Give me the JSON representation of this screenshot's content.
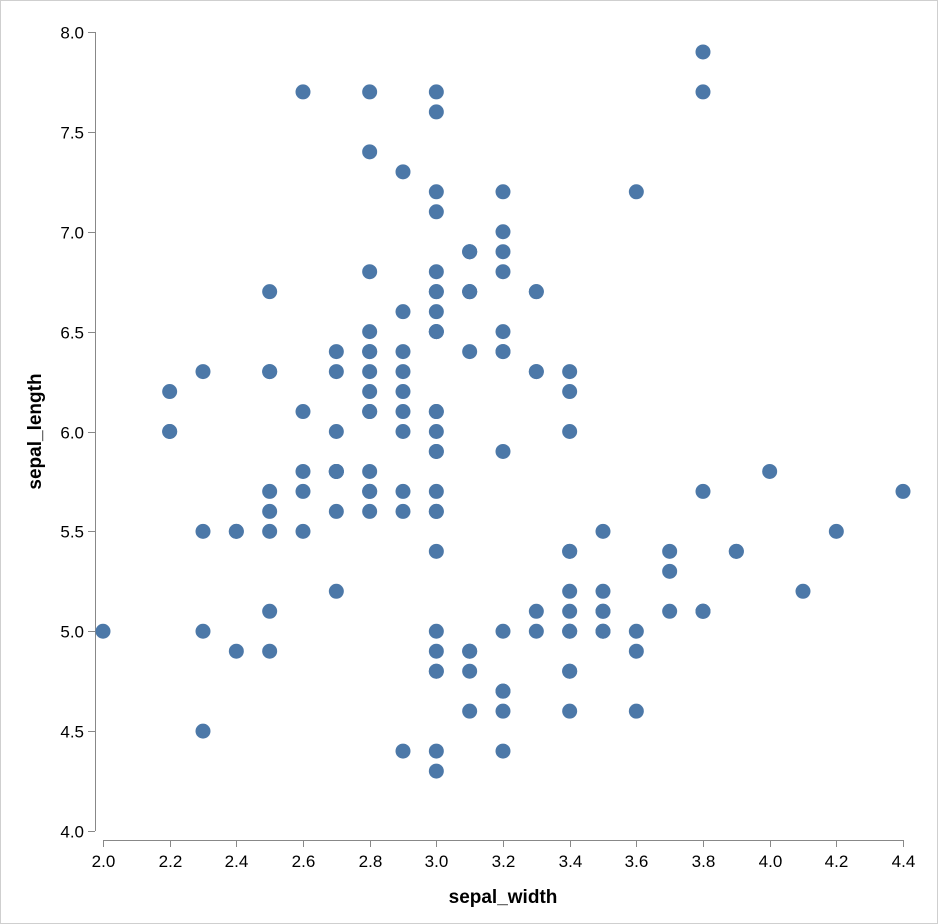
{
  "chart_data": {
    "type": "scatter",
    "xlabel": "sepal_width",
    "ylabel": "sepal_length",
    "xlim": [
      2.0,
      4.4
    ],
    "ylim": [
      4.0,
      8.0
    ],
    "x_ticks": [
      "2.0",
      "2.2",
      "2.4",
      "2.6",
      "2.8",
      "3.0",
      "3.2",
      "3.4",
      "3.6",
      "3.8",
      "4.0",
      "4.2",
      "4.4"
    ],
    "y_ticks": [
      "4.0",
      "4.5",
      "5.0",
      "5.5",
      "6.0",
      "6.5",
      "7.0",
      "7.5",
      "8.0"
    ],
    "grid": false,
    "legend": "none",
    "point_color": "#4c78a8",
    "points": [
      {
        "x": 3.5,
        "y": 5.1
      },
      {
        "x": 3.0,
        "y": 4.9
      },
      {
        "x": 3.2,
        "y": 4.7
      },
      {
        "x": 3.1,
        "y": 4.6
      },
      {
        "x": 3.6,
        "y": 5.0
      },
      {
        "x": 3.9,
        "y": 5.4
      },
      {
        "x": 3.4,
        "y": 4.6
      },
      {
        "x": 3.4,
        "y": 5.0
      },
      {
        "x": 2.9,
        "y": 4.4
      },
      {
        "x": 3.1,
        "y": 4.9
      },
      {
        "x": 3.7,
        "y": 5.4
      },
      {
        "x": 3.4,
        "y": 4.8
      },
      {
        "x": 3.0,
        "y": 4.8
      },
      {
        "x": 3.0,
        "y": 4.3
      },
      {
        "x": 4.0,
        "y": 5.8
      },
      {
        "x": 4.4,
        "y": 5.7
      },
      {
        "x": 3.9,
        "y": 5.4
      },
      {
        "x": 3.5,
        "y": 5.1
      },
      {
        "x": 3.8,
        "y": 5.7
      },
      {
        "x": 3.8,
        "y": 5.1
      },
      {
        "x": 3.4,
        "y": 5.4
      },
      {
        "x": 3.7,
        "y": 5.1
      },
      {
        "x": 3.6,
        "y": 4.6
      },
      {
        "x": 3.3,
        "y": 5.1
      },
      {
        "x": 3.4,
        "y": 4.8
      },
      {
        "x": 3.0,
        "y": 5.0
      },
      {
        "x": 3.4,
        "y": 5.0
      },
      {
        "x": 3.5,
        "y": 5.2
      },
      {
        "x": 3.4,
        "y": 5.2
      },
      {
        "x": 3.2,
        "y": 4.7
      },
      {
        "x": 3.1,
        "y": 4.8
      },
      {
        "x": 3.4,
        "y": 5.4
      },
      {
        "x": 4.1,
        "y": 5.2
      },
      {
        "x": 4.2,
        "y": 5.5
      },
      {
        "x": 3.1,
        "y": 4.9
      },
      {
        "x": 3.2,
        "y": 5.0
      },
      {
        "x": 3.5,
        "y": 5.5
      },
      {
        "x": 3.6,
        "y": 4.9
      },
      {
        "x": 3.0,
        "y": 4.4
      },
      {
        "x": 3.4,
        "y": 5.1
      },
      {
        "x": 3.5,
        "y": 5.0
      },
      {
        "x": 2.3,
        "y": 4.5
      },
      {
        "x": 3.2,
        "y": 4.4
      },
      {
        "x": 3.5,
        "y": 5.0
      },
      {
        "x": 3.8,
        "y": 5.1
      },
      {
        "x": 3.0,
        "y": 4.8
      },
      {
        "x": 3.8,
        "y": 5.1
      },
      {
        "x": 3.2,
        "y": 4.6
      },
      {
        "x": 3.7,
        "y": 5.3
      },
      {
        "x": 3.3,
        "y": 5.0
      },
      {
        "x": 3.2,
        "y": 7.0
      },
      {
        "x": 3.2,
        "y": 6.4
      },
      {
        "x": 3.1,
        "y": 6.9
      },
      {
        "x": 2.3,
        "y": 5.5
      },
      {
        "x": 2.8,
        "y": 6.5
      },
      {
        "x": 2.8,
        "y": 5.7
      },
      {
        "x": 3.3,
        "y": 6.3
      },
      {
        "x": 2.4,
        "y": 4.9
      },
      {
        "x": 2.9,
        "y": 6.6
      },
      {
        "x": 2.7,
        "y": 5.2
      },
      {
        "x": 2.0,
        "y": 5.0
      },
      {
        "x": 3.0,
        "y": 5.9
      },
      {
        "x": 2.2,
        "y": 6.0
      },
      {
        "x": 2.9,
        "y": 6.1
      },
      {
        "x": 2.9,
        "y": 5.6
      },
      {
        "x": 3.1,
        "y": 6.7
      },
      {
        "x": 3.0,
        "y": 5.6
      },
      {
        "x": 2.7,
        "y": 5.8
      },
      {
        "x": 2.2,
        "y": 6.2
      },
      {
        "x": 2.5,
        "y": 5.6
      },
      {
        "x": 3.2,
        "y": 5.9
      },
      {
        "x": 2.8,
        "y": 6.1
      },
      {
        "x": 2.5,
        "y": 6.3
      },
      {
        "x": 2.8,
        "y": 6.1
      },
      {
        "x": 2.9,
        "y": 6.4
      },
      {
        "x": 3.0,
        "y": 6.6
      },
      {
        "x": 2.8,
        "y": 6.8
      },
      {
        "x": 3.0,
        "y": 6.7
      },
      {
        "x": 2.9,
        "y": 6.0
      },
      {
        "x": 2.6,
        "y": 5.7
      },
      {
        "x": 2.4,
        "y": 5.5
      },
      {
        "x": 2.4,
        "y": 5.5
      },
      {
        "x": 2.7,
        "y": 5.8
      },
      {
        "x": 2.7,
        "y": 6.0
      },
      {
        "x": 3.0,
        "y": 5.4
      },
      {
        "x": 3.4,
        "y": 6.0
      },
      {
        "x": 3.1,
        "y": 6.7
      },
      {
        "x": 2.3,
        "y": 6.3
      },
      {
        "x": 3.0,
        "y": 5.6
      },
      {
        "x": 2.5,
        "y": 5.5
      },
      {
        "x": 2.6,
        "y": 5.5
      },
      {
        "x": 3.0,
        "y": 6.1
      },
      {
        "x": 2.6,
        "y": 5.8
      },
      {
        "x": 2.3,
        "y": 5.0
      },
      {
        "x": 2.7,
        "y": 5.6
      },
      {
        "x": 3.0,
        "y": 5.7
      },
      {
        "x": 2.9,
        "y": 5.7
      },
      {
        "x": 2.9,
        "y": 6.2
      },
      {
        "x": 2.5,
        "y": 5.1
      },
      {
        "x": 2.8,
        "y": 5.7
      },
      {
        "x": 3.3,
        "y": 6.3
      },
      {
        "x": 2.7,
        "y": 5.8
      },
      {
        "x": 3.0,
        "y": 7.1
      },
      {
        "x": 2.9,
        "y": 6.3
      },
      {
        "x": 3.0,
        "y": 6.5
      },
      {
        "x": 3.0,
        "y": 7.6
      },
      {
        "x": 2.5,
        "y": 4.9
      },
      {
        "x": 2.9,
        "y": 7.3
      },
      {
        "x": 2.5,
        "y": 6.7
      },
      {
        "x": 3.6,
        "y": 7.2
      },
      {
        "x": 3.2,
        "y": 6.5
      },
      {
        "x": 2.7,
        "y": 6.4
      },
      {
        "x": 3.0,
        "y": 6.8
      },
      {
        "x": 2.5,
        "y": 5.7
      },
      {
        "x": 2.8,
        "y": 5.8
      },
      {
        "x": 3.2,
        "y": 6.4
      },
      {
        "x": 3.0,
        "y": 6.5
      },
      {
        "x": 3.8,
        "y": 7.7
      },
      {
        "x": 2.6,
        "y": 7.7
      },
      {
        "x": 2.2,
        "y": 6.0
      },
      {
        "x": 3.2,
        "y": 6.9
      },
      {
        "x": 2.8,
        "y": 5.6
      },
      {
        "x": 2.8,
        "y": 7.7
      },
      {
        "x": 2.7,
        "y": 6.3
      },
      {
        "x": 3.3,
        "y": 6.7
      },
      {
        "x": 3.2,
        "y": 7.2
      },
      {
        "x": 2.8,
        "y": 6.2
      },
      {
        "x": 3.0,
        "y": 6.1
      },
      {
        "x": 2.8,
        "y": 6.4
      },
      {
        "x": 3.0,
        "y": 7.2
      },
      {
        "x": 2.8,
        "y": 7.4
      },
      {
        "x": 3.8,
        "y": 7.9
      },
      {
        "x": 2.8,
        "y": 6.4
      },
      {
        "x": 2.8,
        "y": 6.3
      },
      {
        "x": 2.6,
        "y": 6.1
      },
      {
        "x": 3.0,
        "y": 7.7
      },
      {
        "x": 3.4,
        "y": 6.3
      },
      {
        "x": 3.1,
        "y": 6.4
      },
      {
        "x": 3.0,
        "y": 6.0
      },
      {
        "x": 3.1,
        "y": 6.9
      },
      {
        "x": 3.1,
        "y": 6.7
      },
      {
        "x": 3.1,
        "y": 6.9
      },
      {
        "x": 2.7,
        "y": 5.8
      },
      {
        "x": 3.2,
        "y": 6.8
      },
      {
        "x": 3.3,
        "y": 6.7
      },
      {
        "x": 3.0,
        "y": 6.7
      },
      {
        "x": 2.5,
        "y": 6.3
      },
      {
        "x": 3.0,
        "y": 6.5
      },
      {
        "x": 3.4,
        "y": 6.2
      },
      {
        "x": 3.0,
        "y": 5.9
      }
    ]
  }
}
